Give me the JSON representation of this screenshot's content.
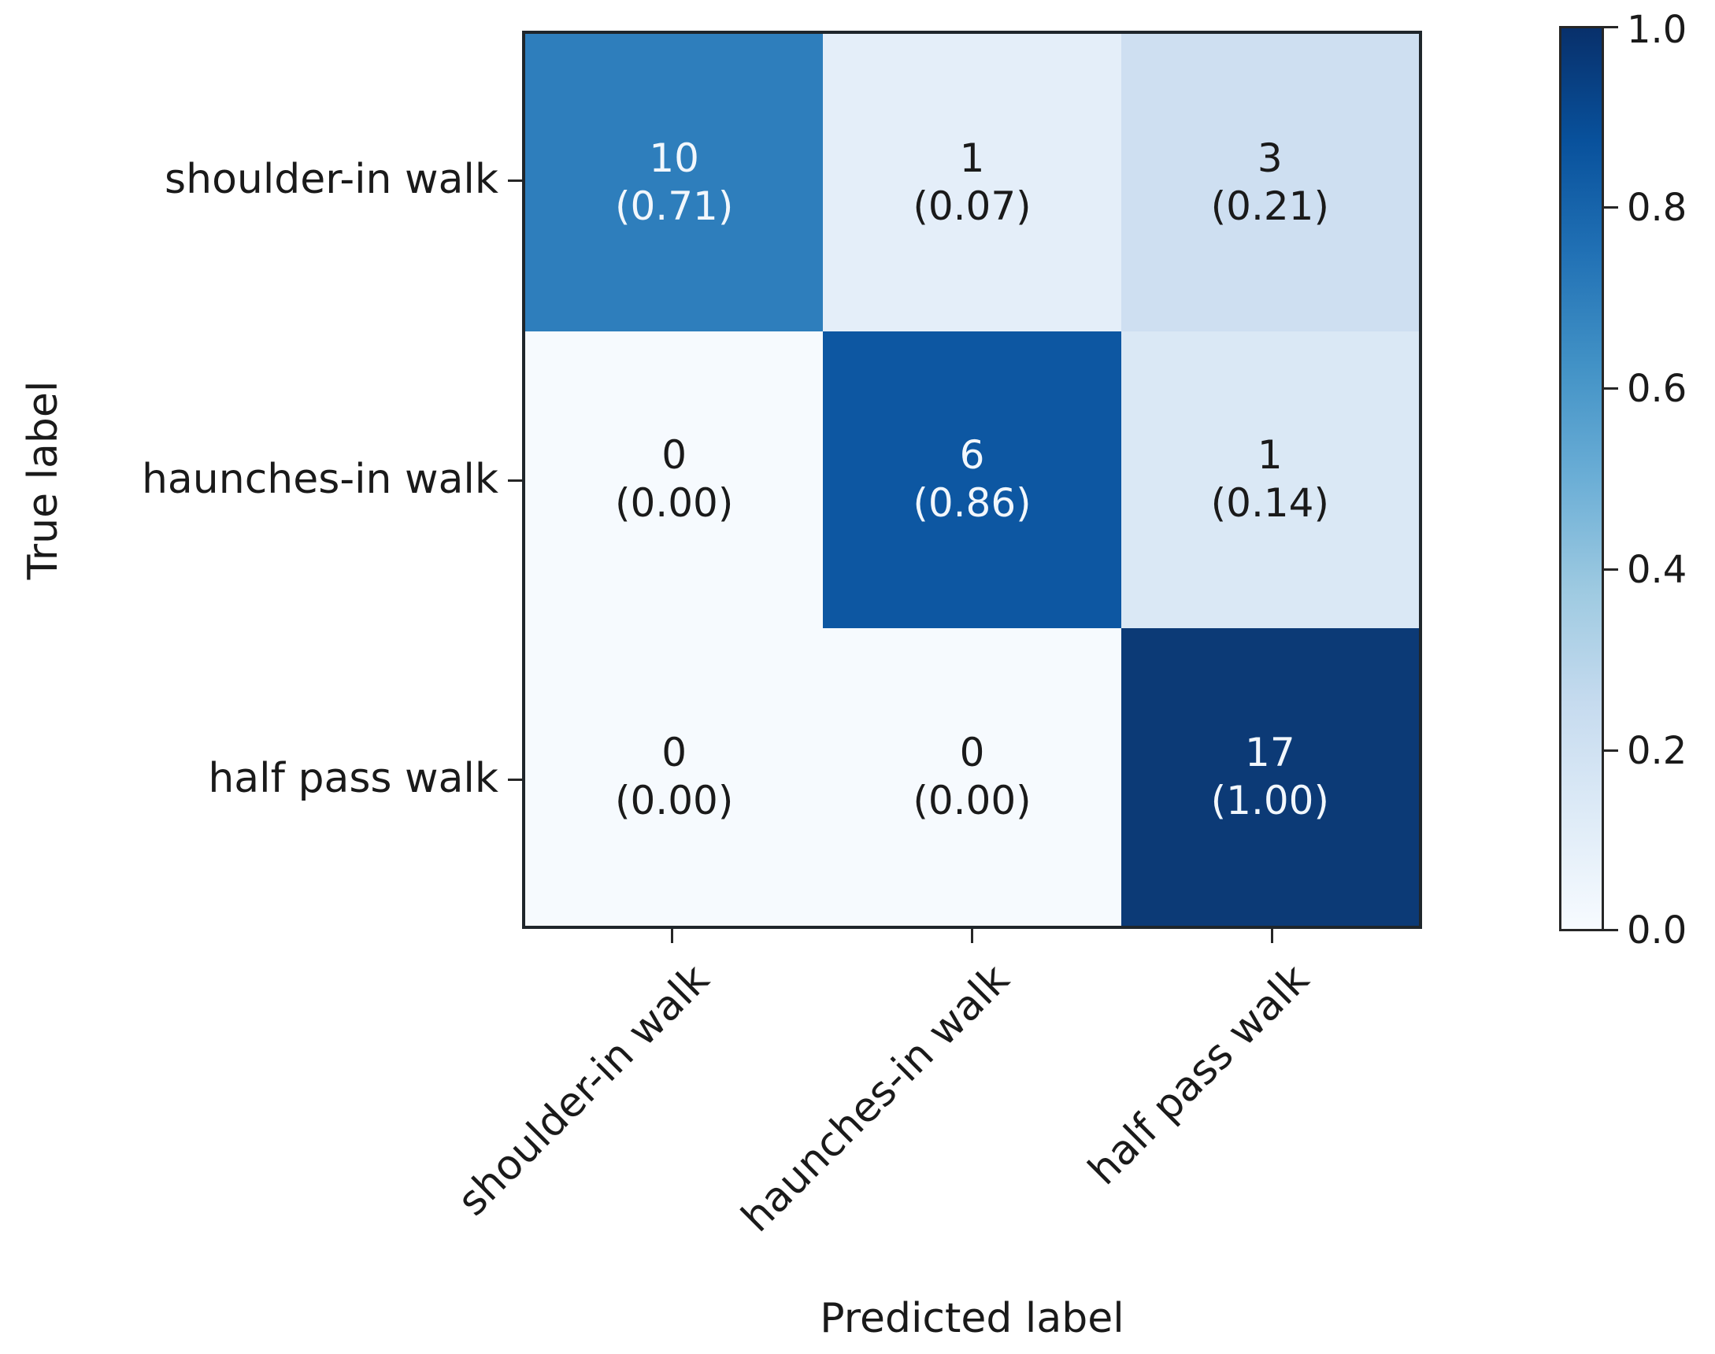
{
  "chart_data": {
    "type": "heatmap",
    "subtype": "confusion-matrix",
    "title": "",
    "xlabel": "Predicted label",
    "ylabel": "True label",
    "categories": [
      "shoulder-in walk",
      "haunches-in walk",
      "half pass walk"
    ],
    "x_tick_labels": [
      "shoulder-in walk",
      "haunches-in walk",
      "half pass walk"
    ],
    "y_tick_labels": [
      "shoulder-in walk",
      "haunches-in walk",
      "half pass walk"
    ],
    "counts": [
      [
        10,
        1,
        3
      ],
      [
        0,
        6,
        1
      ],
      [
        0,
        0,
        17
      ]
    ],
    "proportions": [
      [
        0.71,
        0.07,
        0.21
      ],
      [
        0.0,
        0.86,
        0.14
      ],
      [
        0.0,
        0.0,
        1.0
      ]
    ],
    "colormap": "Blues",
    "grid": false,
    "colorbar": {
      "position": "right",
      "min": 0.0,
      "max": 1.0,
      "ticks": [
        "1.0",
        "0.8",
        "0.6",
        "0.4",
        "0.2",
        "0.0"
      ],
      "gradient_stops_low_to_high": [
        "#f7fbff",
        "#deebf7",
        "#c6dbef",
        "#9ecae1",
        "#6baed6",
        "#4292c6",
        "#2171b5",
        "#08519c",
        "#08306b"
      ]
    }
  },
  "cells": [
    {
      "count": "10",
      "prop": "(0.71)",
      "bg": "#2e7ebc",
      "fg": "#f2f7fc"
    },
    {
      "count": "1",
      "prop": "(0.07)",
      "bg": "#e4eef9",
      "fg": "#1a1a1a"
    },
    {
      "count": "3",
      "prop": "(0.21)",
      "bg": "#cedff1",
      "fg": "#1a1a1a"
    },
    {
      "count": "0",
      "prop": "(0.00)",
      "bg": "#f6fafe",
      "fg": "#1a1a1a"
    },
    {
      "count": "6",
      "prop": "(0.86)",
      "bg": "#0d57a2",
      "fg": "#f2f7fc"
    },
    {
      "count": "1",
      "prop": "(0.14)",
      "bg": "#dae8f5",
      "fg": "#1a1a1a"
    },
    {
      "count": "0",
      "prop": "(0.00)",
      "bg": "#f6fafe",
      "fg": "#1a1a1a"
    },
    {
      "count": "0",
      "prop": "(0.00)",
      "bg": "#f6fafe",
      "fg": "#1a1a1a"
    },
    {
      "count": "17",
      "prop": "(1.00)",
      "bg": "#0c3a76",
      "fg": "#f2f7fc"
    }
  ],
  "colors": {
    "background": "#ffffff",
    "spine": "#262626",
    "text": "#1a1a1a"
  }
}
